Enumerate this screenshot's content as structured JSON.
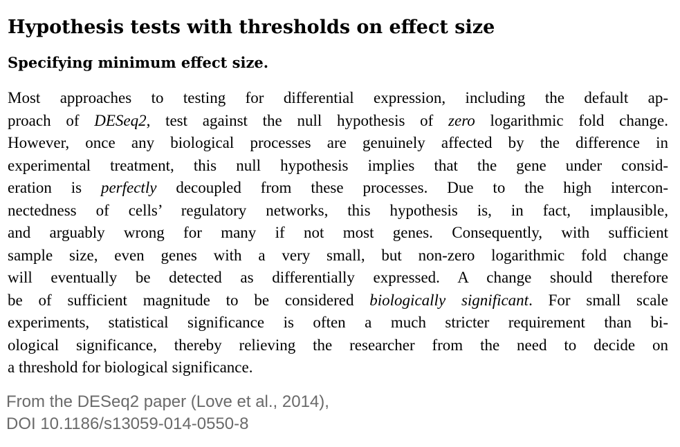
{
  "section": {
    "title": "Hypothesis tests with thresholds on effect size"
  },
  "paragraph": {
    "heading": "Specifying minimum effect size.",
    "lines": [
      [
        "Most approaches to testing for differential expression, including the default ap-"
      ],
      [
        "proach of ",
        "DESeq2",
        ", test against the null hypothesis of ",
        "zero",
        " logarithmic fold change."
      ],
      [
        "However, once any biological processes are genuinely affected by the difference in"
      ],
      [
        "experimental treatment, this null hypothesis implies that the gene under consid-"
      ],
      [
        "eration is ",
        "perfectly",
        " decoupled from these processes.  Due to the high intercon-"
      ],
      [
        "nectedness of cells’ regulatory networks, this hypothesis is, in fact, implausible,"
      ],
      [
        "and arguably wrong for many if not most genes.  Consequently, with sufficient"
      ],
      [
        "sample size, even genes with a very small, but non-zero logarithmic fold change"
      ],
      [
        "will eventually be detected as differentially expressed.  A change should therefore"
      ],
      [
        "be of sufficient magnitude to be considered ",
        "biologically significant",
        ". For small scale"
      ],
      [
        "experiments, statistical significance is often a much stricter requirement than bi-"
      ],
      [
        "ological significance, thereby relieving the researcher from the need to decide on"
      ],
      [
        "a threshold for biological significance."
      ]
    ]
  },
  "caption": {
    "line1": "From the DESeq2 paper (Love et al., 2014),",
    "line2": "DOI 10.1186/s13059-014-0550-8"
  },
  "colors": {
    "text": "#000000",
    "caption": "#6a6a6a",
    "background": "#ffffff"
  }
}
